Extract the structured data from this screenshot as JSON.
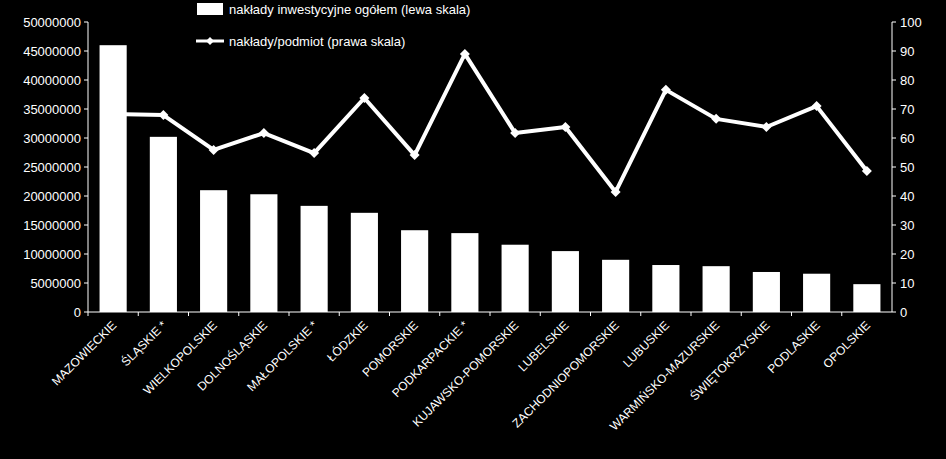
{
  "chart_data": {
    "type": "bar",
    "categories": [
      "MAZOWIECKIE",
      "ŚLĄSKIE *",
      "WIELKOPOLSKIE",
      "DOLNOŚLĄSKIE",
      "MAŁOPOLSKIE *",
      "ŁÓDZKIE",
      "POMORSKIE",
      "PODKARPACKIE *",
      "KUJAWSKO-POMORSKIE",
      "LUBELSKIE",
      "ZACHODNIOPOMORSKIE",
      "LUBUSKIE",
      "WARMIŃSKO-MAZURSKIE",
      "ŚWIĘTOKRZYSKIE",
      "PODLASKIE",
      "OPOLSKIE"
    ],
    "series": [
      {
        "name": "nakłady inwestycyjne ogółem (lewa skala)",
        "type": "bar",
        "color": "#ffffff",
        "axis": "y",
        "values": [
          46000000,
          30200000,
          21000000,
          20300000,
          18300000,
          17100000,
          14100000,
          13600000,
          11600000,
          10500000,
          9000000,
          8100000,
          7900000,
          6900000,
          6600000,
          4800000
        ]
      },
      {
        "name": "nakłady/podmiot (prawa skala)",
        "type": "line",
        "color": "#ffffff",
        "axis": "y2",
        "marker": "diamond",
        "line_style": "solid",
        "values": [
          68.3,
          67.9,
          55.9,
          61.7,
          54.8,
          73.8,
          54.1,
          89,
          61.7,
          63.8,
          41.4,
          76.6,
          66.6,
          63.8,
          71,
          48.6
        ]
      }
    ],
    "ylim": [
      0,
      50000000
    ],
    "yticks": [
      0,
      5000000,
      10000000,
      15000000,
      20000000,
      25000000,
      30000000,
      35000000,
      40000000,
      45000000,
      50000000
    ],
    "y2lim": [
      0,
      100
    ],
    "y2ticks": [
      0,
      10,
      20,
      30,
      40,
      50,
      60,
      70,
      80,
      90,
      100
    ],
    "grid": false,
    "legend": "top"
  }
}
